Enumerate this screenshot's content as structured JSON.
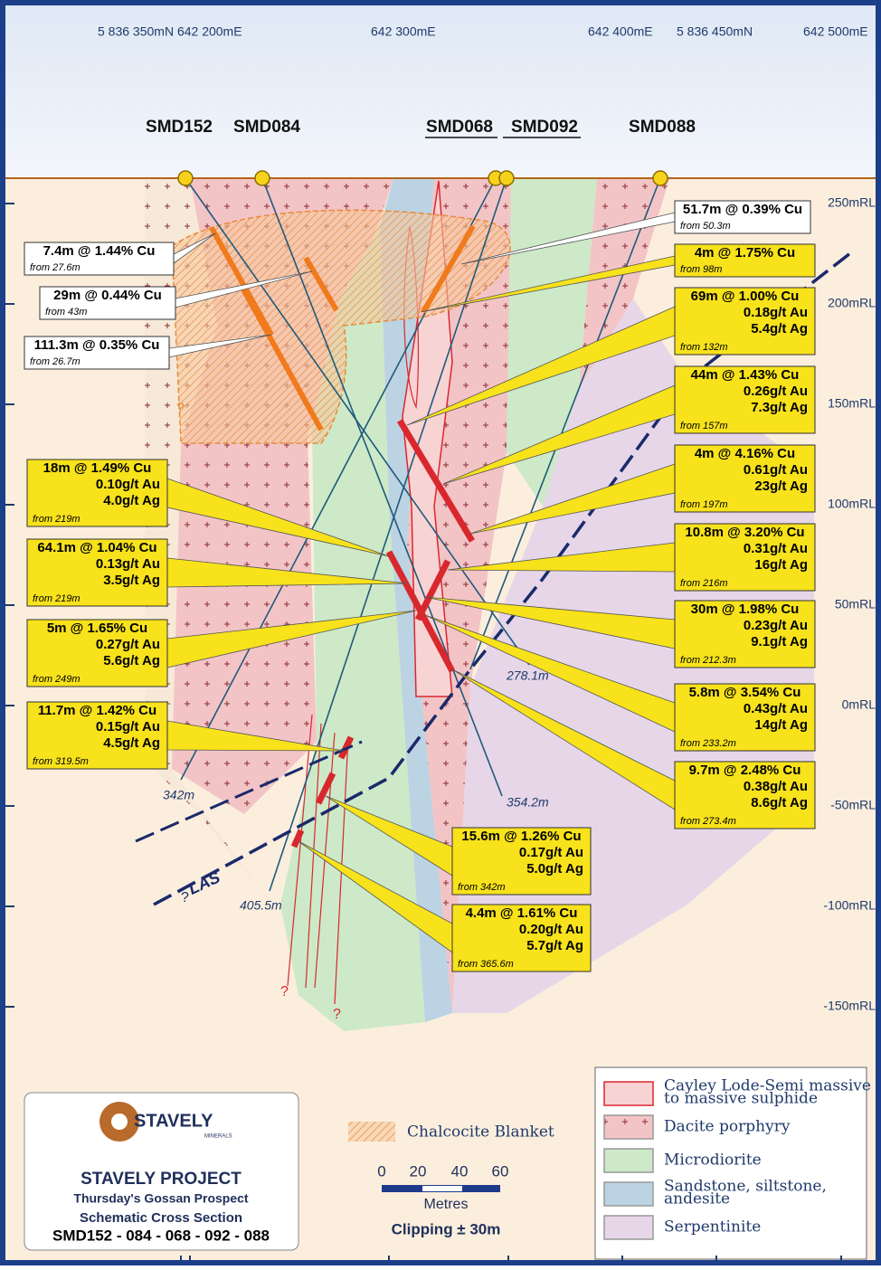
{
  "top_coords": [
    "5 836 350mN 642 200mE",
    "642 300mE",
    "642 400mE",
    "5 836 450mN",
    "642 500mE"
  ],
  "holes": [
    "SMD152",
    "SMD084",
    "SMD068",
    "SMD092",
    "SMD088"
  ],
  "rl_labels": [
    "250mRL",
    "200mRL",
    "150mRL",
    "100mRL",
    "50mRL",
    "0mRL",
    "-50mRL",
    "-100mRL",
    "-150mRL"
  ],
  "intercepts": [
    {
      "lines": [
        "7.4m @ 1.44% Cu"
      ],
      "from": "from 27.6m"
    },
    {
      "lines": [
        "29m @ 0.44% Cu"
      ],
      "from": "from 43m"
    },
    {
      "lines": [
        "111.3m @ 0.35% Cu"
      ],
      "from": "from 26.7m"
    },
    {
      "lines": [
        "51.7m @ 0.39% Cu"
      ],
      "from": "from 50.3m"
    },
    {
      "lines": [
        "4m @ 1.75% Cu"
      ],
      "from": "from 98m"
    },
    {
      "lines": [
        "69m @ 1.00% Cu",
        "0.18g/t Au",
        "5.4g/t Ag"
      ],
      "from": "from 132m"
    },
    {
      "lines": [
        "44m @ 1.43% Cu",
        "0.26g/t Au",
        "7.3g/t Ag"
      ],
      "from": "from 157m"
    },
    {
      "lines": [
        "4m @ 4.16% Cu",
        "0.61g/t Au",
        "23g/t Ag"
      ],
      "from": "from 197m"
    },
    {
      "lines": [
        "10.8m @ 3.20% Cu",
        "0.31g/t Au",
        "16g/t Ag"
      ],
      "from": "from 216m"
    },
    {
      "lines": [
        "30m @ 1.98% Cu",
        "0.23g/t Au",
        "9.1g/t Ag"
      ],
      "from": "from 212.3m"
    },
    {
      "lines": [
        "5.8m @ 3.54% Cu",
        "0.43g/t Au",
        "14g/t Ag"
      ],
      "from": "from 233.2m"
    },
    {
      "lines": [
        "9.7m @ 2.48% Cu",
        "0.38g/t Au",
        "8.6g/t Ag"
      ],
      "from": "from 273.4m"
    },
    {
      "lines": [
        "18m @ 1.49% Cu",
        "0.10g/t Au",
        "4.0g/t Ag"
      ],
      "from": "from 219m"
    },
    {
      "lines": [
        "64.1m @ 1.04% Cu",
        "0.13g/t Au",
        "3.5g/t Ag"
      ],
      "from": "from 219m"
    },
    {
      "lines": [
        "5m @ 1.65% Cu",
        "0.27g/t Au",
        "5.6g/t Ag"
      ],
      "from": "from 249m"
    },
    {
      "lines": [
        "11.7m @ 1.42% Cu",
        "0.15g/t Au",
        "4.5g/t Ag"
      ],
      "from": "from 319.5m"
    },
    {
      "lines": [
        "15.6m @ 1.26% Cu",
        "0.17g/t Au",
        "5.0g/t Ag"
      ],
      "from": "from 342m"
    },
    {
      "lines": [
        "4.4m @ 1.61% Cu",
        "0.20g/t Au",
        "5.7g/t Ag"
      ],
      "from": "from 365.6m"
    }
  ],
  "depths": [
    "342m",
    "278.1m",
    "354.2m",
    "405.5m"
  ],
  "question_mark": "?",
  "fault": "LAS",
  "logo": {
    "name": "STAVELY",
    "sub": "MINERALS"
  },
  "title": [
    "STAVELY PROJECT",
    "Thursday's Gossan Prospect",
    "Schematic Cross Section",
    "SMD152 - 084 - 068 - 092 - 088"
  ],
  "chalcocite": "Chalcocite Blanket",
  "scale": {
    "labels": [
      "0",
      "20",
      "40",
      "60"
    ],
    "unit": "Metres",
    "clipping": "Clipping ± 30m"
  },
  "legend": [
    {
      "label": [
        "Cayley Lode-Semi massive",
        "to massive sulphide"
      ]
    },
    {
      "label": [
        "Dacite porphyry"
      ]
    },
    {
      "label": [
        "Microdiorite"
      ]
    },
    {
      "label": [
        "Sandstone, siltstone,",
        "andesite"
      ]
    },
    {
      "label": [
        "Serpentinite"
      ]
    }
  ]
}
